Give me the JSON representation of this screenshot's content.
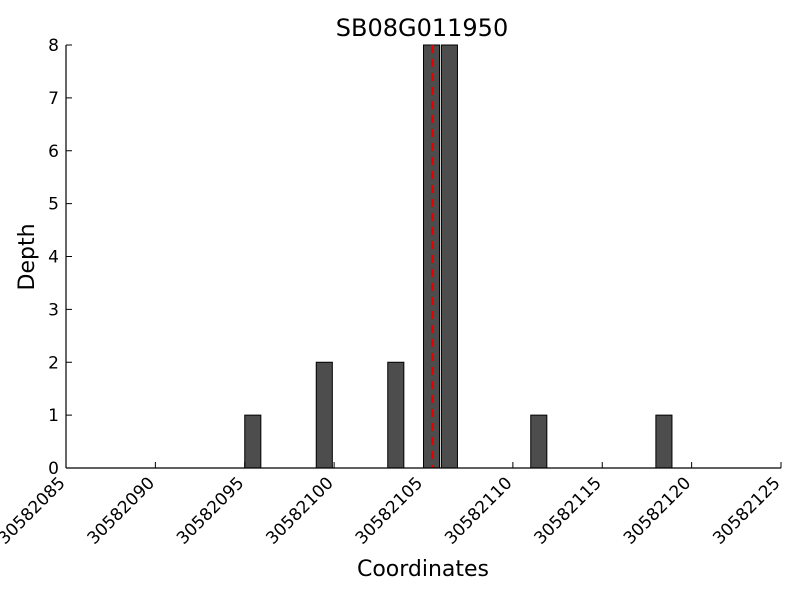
{
  "chart_data": {
    "type": "bar",
    "title": "SB08G011950",
    "xlabel": "Coordinates",
    "ylabel": "Depth",
    "xlim": [
      30582085,
      30582125
    ],
    "ylim": [
      0,
      8
    ],
    "x_ticks": [
      "30582085",
      "30582090",
      "30582095",
      "30582100",
      "30582105",
      "30582110",
      "30582115",
      "30582120",
      "30582125"
    ],
    "y_ticks": [
      "0",
      "1",
      "2",
      "3",
      "4",
      "5",
      "6",
      "7",
      "8"
    ],
    "x": [
      30582095,
      30582099,
      30582103,
      30582105,
      30582106,
      30582111,
      30582118
    ],
    "values": [
      1,
      2,
      2,
      8,
      8,
      1,
      1
    ],
    "marker_x": 30582105.5,
    "grid": false,
    "colors": {
      "bar": "#4d4d4d",
      "bar_edge": "#000000",
      "marker": "#e60000"
    }
  }
}
